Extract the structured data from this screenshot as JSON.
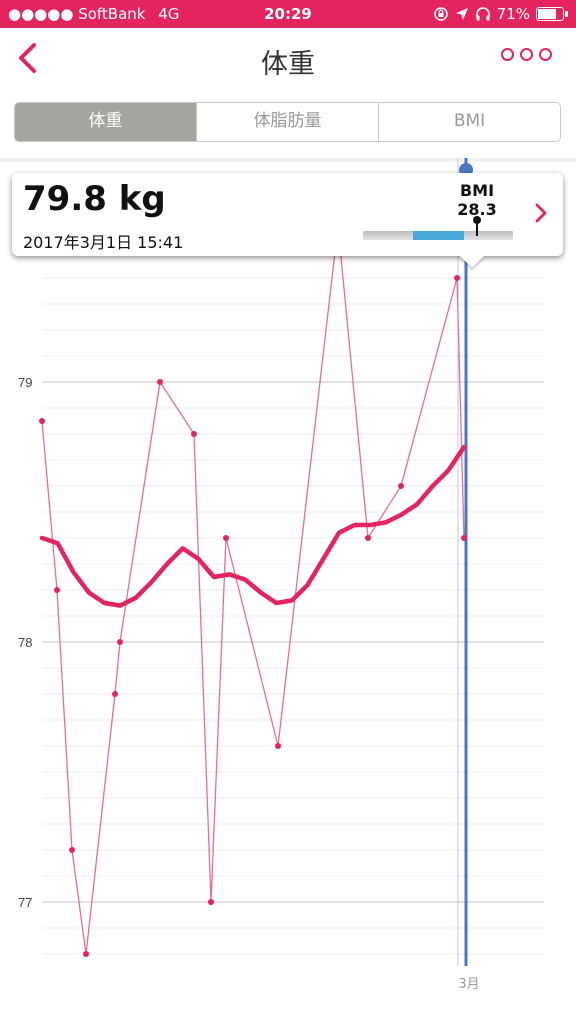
{
  "status_bar": {
    "carrier": "●●●●● SoftBank",
    "network": "4G",
    "time": "20:29",
    "battery": "71%",
    "battery_level": 0.71
  },
  "nav": {
    "title": "体重"
  },
  "tabs": [
    {
      "label": "体重",
      "active": true
    },
    {
      "label": "体脂肪量",
      "active": false
    },
    {
      "label": "BMI",
      "active": false
    }
  ],
  "popup": {
    "weight": "79.8 kg",
    "datetime": "2017年3月1日 15:41",
    "bmi_label": "BMI",
    "bmi_value": "28.3",
    "bmi_marker_fraction": 0.76
  },
  "colors": {
    "accent": "#e4245e",
    "selection_line": "#4a78c8",
    "bmi_band": "#4aa8da"
  },
  "chart_data": {
    "type": "line",
    "x_tick_label": "3月",
    "ylim": [
      76.7,
      79.5
    ],
    "yticks": [
      77,
      78,
      79
    ],
    "grid": true,
    "series": [
      {
        "role": "daily",
        "values": [
          78.85,
          78.2,
          77.2,
          76.8,
          77.8,
          78.0,
          79.0,
          78.8,
          77.0,
          78.4,
          77.6,
          79.6,
          78.4,
          78.6,
          79.4,
          78.4
        ]
      },
      {
        "role": "trend",
        "values": [
          78.4,
          78.38,
          78.27,
          78.19,
          78.15,
          78.14,
          78.17,
          78.23,
          78.3,
          78.36,
          78.32,
          78.25,
          78.26,
          78.24,
          78.19,
          78.15,
          78.16,
          78.22,
          78.32,
          78.42,
          78.45,
          78.45,
          78.46,
          78.49,
          78.53,
          78.6,
          78.66,
          78.75
        ]
      }
    ]
  }
}
